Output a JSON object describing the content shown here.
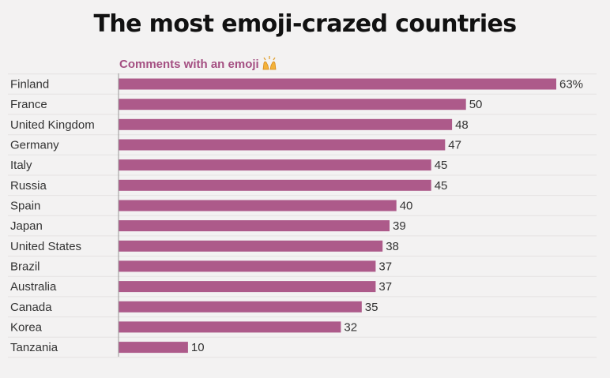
{
  "chart_data": {
    "type": "bar",
    "orientation": "horizontal",
    "title": "The most emoji-crazed countries",
    "series": [
      {
        "name": "Comments with an emoji",
        "color": "#ad5a8a",
        "values": [
          63,
          50,
          48,
          47,
          45,
          45,
          40,
          39,
          38,
          37,
          37,
          35,
          32,
          10
        ]
      }
    ],
    "categories": [
      "Finland",
      "France",
      "United Kingdom",
      "Germany",
      "Italy",
      "Russia",
      "Spain",
      "Japan",
      "United States",
      "Brazil",
      "Australia",
      "Canada",
      "Korea",
      "Tanzania"
    ],
    "data_labels": [
      "63%",
      "50",
      "48",
      "47",
      "45",
      "45",
      "40",
      "39",
      "38",
      "37",
      "37",
      "35",
      "32",
      "10"
    ],
    "series_icon": "raising-hands-emoji-icon",
    "xlim": [
      0,
      63
    ],
    "grid": true,
    "legend": "none",
    "colors": {
      "bar": "#ad5a8a",
      "series_label": "#a44f82",
      "background": "#f3f2f2"
    }
  }
}
